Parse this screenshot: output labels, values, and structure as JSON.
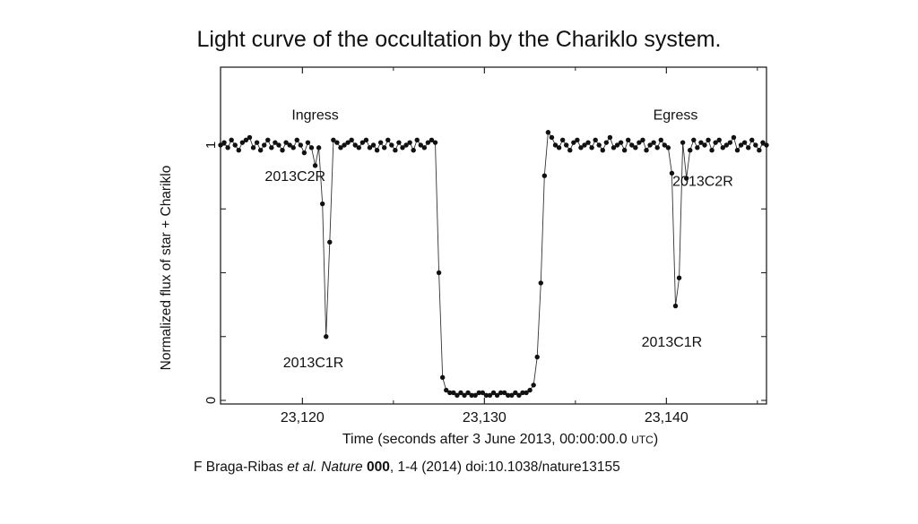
{
  "chart_data": {
    "type": "scatter",
    "title": "Light curve of the occultation by the Chariklo system.",
    "xlabel": "Time (seconds after 3 June 2013, 00:00:00.0",
    "xlabel_unit": "UTC",
    "xlabel_close": ")",
    "ylabel": "Normalized flux of star + Chariklo",
    "xlim": [
      23115.5,
      23145.5
    ],
    "ylim": [
      0,
      1.2
    ],
    "xticks": [
      23120,
      23130,
      23140
    ],
    "xtick_labels": [
      "23,120",
      "23,130",
      "23,140"
    ],
    "yticks": [
      0,
      1
    ],
    "ytick_labels": [
      "0",
      "1"
    ],
    "grid": false,
    "series": [
      {
        "x": [
          23115.5,
          23115.7,
          23115.9,
          23116.1,
          23116.3,
          23116.5,
          23116.7,
          23116.9,
          23117.1,
          23117.3,
          23117.5,
          23117.7,
          23117.9,
          23118.1,
          23118.3,
          23118.5,
          23118.7,
          23118.9,
          23119.1,
          23119.3,
          23119.5,
          23119.7,
          23119.9,
          23120.1,
          23120.3,
          23120.5,
          23120.7,
          23120.9,
          23121.1,
          23121.3,
          23121.5,
          23121.7,
          23121.9,
          23122.1,
          23122.3,
          23122.5,
          23122.7,
          23122.9,
          23123.1,
          23123.3,
          23123.5,
          23123.7,
          23123.9,
          23124.1,
          23124.3,
          23124.5,
          23124.7,
          23124.9,
          23125.1,
          23125.3,
          23125.5,
          23125.7,
          23125.9,
          23126.1,
          23126.3,
          23126.5,
          23126.7,
          23126.9,
          23127.1,
          23127.3,
          23127.5,
          23127.7,
          23127.9,
          23128.1,
          23128.3,
          23128.5,
          23128.7,
          23128.9,
          23129.1,
          23129.3,
          23129.5,
          23129.7,
          23129.9,
          23130.1,
          23130.3,
          23130.5,
          23130.7,
          23130.9,
          23131.1,
          23131.3,
          23131.5,
          23131.7,
          23131.9,
          23132.1,
          23132.3,
          23132.5,
          23132.7,
          23132.9,
          23133.1,
          23133.3,
          23133.5,
          23133.7,
          23133.9,
          23134.1,
          23134.3,
          23134.5,
          23134.7,
          23134.9,
          23135.1,
          23135.3,
          23135.5,
          23135.7,
          23135.9,
          23136.1,
          23136.3,
          23136.5,
          23136.7,
          23136.9,
          23137.1,
          23137.3,
          23137.5,
          23137.7,
          23137.9,
          23138.1,
          23138.3,
          23138.5,
          23138.7,
          23138.9,
          23139.1,
          23139.3,
          23139.5,
          23139.7,
          23139.9,
          23140.1,
          23140.3,
          23140.5,
          23140.7,
          23140.9,
          23141.1,
          23141.3,
          23141.5,
          23141.7,
          23141.9,
          23142.1,
          23142.3,
          23142.5,
          23142.7,
          23142.9,
          23143.1,
          23143.3,
          23143.5,
          23143.7,
          23143.9,
          23144.1,
          23144.3,
          23144.5,
          23144.7,
          23144.9,
          23145.1,
          23145.3,
          23145.5
        ],
        "y": [
          1.0,
          1.01,
          0.99,
          1.02,
          1.0,
          0.98,
          1.01,
          1.02,
          1.03,
          0.99,
          1.01,
          0.98,
          1.0,
          1.02,
          0.99,
          1.01,
          1.0,
          0.98,
          1.01,
          1.0,
          0.99,
          1.02,
          1.0,
          0.97,
          1.01,
          0.99,
          0.92,
          0.99,
          0.77,
          0.25,
          0.62,
          1.02,
          1.01,
          0.99,
          1.0,
          1.01,
          1.02,
          1.0,
          0.99,
          1.01,
          1.02,
          0.99,
          1.0,
          0.98,
          1.01,
          0.99,
          1.02,
          1.0,
          0.98,
          1.01,
          0.99,
          1.0,
          1.01,
          0.98,
          1.02,
          1.0,
          0.99,
          1.01,
          1.02,
          1.01,
          0.5,
          0.09,
          0.04,
          0.03,
          0.03,
          0.02,
          0.03,
          0.02,
          0.03,
          0.02,
          0.02,
          0.03,
          0.03,
          0.02,
          0.02,
          0.03,
          0.02,
          0.03,
          0.03,
          0.02,
          0.02,
          0.03,
          0.02,
          0.03,
          0.03,
          0.04,
          0.06,
          0.17,
          0.46,
          0.88,
          1.05,
          1.03,
          1.0,
          0.99,
          1.02,
          1.0,
          0.98,
          1.01,
          1.02,
          0.99,
          1.0,
          1.01,
          0.99,
          1.02,
          1.0,
          0.98,
          1.01,
          1.03,
          0.99,
          1.0,
          1.01,
          0.98,
          1.02,
          1.0,
          0.99,
          1.01,
          1.02,
          0.98,
          1.0,
          1.01,
          0.99,
          1.02,
          1.0,
          0.99,
          0.89,
          0.37,
          0.48,
          1.01,
          0.87,
          0.98,
          1.02,
          0.99,
          1.01,
          1.0,
          1.02,
          0.98,
          1.01,
          1.02,
          0.99,
          1.0,
          1.01,
          1.03,
          0.98,
          1.0,
          1.01,
          0.99,
          1.02,
          1.0,
          0.98,
          1.01,
          1.0
        ]
      }
    ],
    "annotations": [
      {
        "text": "Ingress",
        "x": 23120.7,
        "y": 1.1
      },
      {
        "text": "Egress",
        "x": 23140.5,
        "y": 1.1
      },
      {
        "text": "2013C2R",
        "x": 23119.6,
        "y": 0.86
      },
      {
        "text": "2013C1R",
        "x": 23120.6,
        "y": 0.13
      },
      {
        "text": "2013C2R",
        "x": 23142.0,
        "y": 0.84
      },
      {
        "text": "2013C1R",
        "x": 23140.3,
        "y": 0.21
      }
    ]
  },
  "citation": {
    "authors": "F Braga-Ribas ",
    "etal": "et al.",
    "journal": "Nature",
    "volume": "000",
    "rest": ", 1-4 (2014) doi:10.1038/nature13155"
  }
}
